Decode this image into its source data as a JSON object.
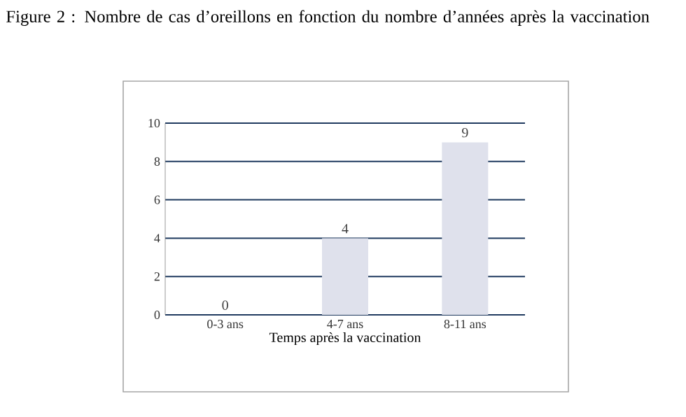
{
  "chart_data": {
    "type": "bar",
    "title": "Figure 2 : Nombre de cas d’oreillons en fonction du nombre d’années après la vaccination",
    "categories": [
      "0-3 ans",
      "4-7 ans",
      "8-11 ans"
    ],
    "values": [
      0,
      4,
      9
    ],
    "color": "#dfe1ec",
    "ylim": [
      0,
      10
    ],
    "yticks": [
      0,
      2,
      4,
      6,
      8,
      10
    ],
    "grid": "y",
    "data_labels": true,
    "xlabel": "Temps après la vaccination"
  }
}
